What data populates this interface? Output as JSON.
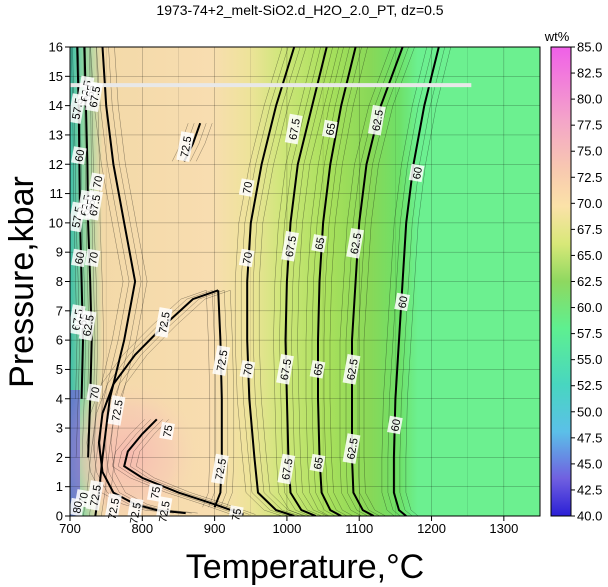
{
  "chart_data": {
    "type": "heatmap",
    "title": "1973-74+2_melt-SiO2.d_H2O_2.0_PT, dz=0.5",
    "xlabel": "Temperature,°C",
    "ylabel": "Pressure,kbar",
    "xlim": [
      700,
      1350
    ],
    "ylim": [
      0,
      16
    ],
    "x_ticks": [
      "700",
      "800",
      "900",
      "1000",
      "1100",
      "1200",
      "1300"
    ],
    "y_ticks": [
      "0",
      "1",
      "2",
      "3",
      "4",
      "5",
      "6",
      "7",
      "8",
      "9",
      "10",
      "11",
      "12",
      "13",
      "14",
      "15",
      "16"
    ],
    "colorbar": {
      "label": "wt%",
      "range": [
        40,
        85
      ],
      "ticks": [
        "40.0",
        "42.5",
        "45.0",
        "47.5",
        "50.0",
        "52.5",
        "55.0",
        "57.5",
        "60.0",
        "62.5",
        "65.0",
        "67.5",
        "70.0",
        "72.5",
        "75.0",
        "77.5",
        "80.0",
        "82.5",
        "85.0"
      ]
    },
    "grid": true,
    "contour_lines": [
      {
        "level": "75",
        "points": [
          [
            820,
            3.3
          ],
          [
            800,
            2.8
          ],
          [
            780,
            2.2
          ],
          [
            775,
            1.7
          ],
          [
            800,
            1.3
          ],
          [
            850,
            0.8
          ],
          [
            900,
            0.4
          ],
          [
            940,
            0.05
          ]
        ]
      },
      {
        "level": "72.5",
        "points": [
          [
            905,
            7.7
          ],
          [
            870,
            7.4
          ],
          [
            830,
            6.5
          ],
          [
            790,
            5.5
          ],
          [
            760,
            4.5
          ],
          [
            745,
            3.5
          ],
          [
            740,
            2.5
          ],
          [
            745,
            1.5
          ],
          [
            760,
            0.8
          ],
          [
            790,
            0.4
          ],
          [
            820,
            0.2
          ],
          [
            860,
            0.1
          ]
        ]
      },
      {
        "level": "72.5",
        "points": [
          [
            905,
            7.7
          ],
          [
            908,
            6.0
          ],
          [
            910,
            4.0
          ],
          [
            910,
            2.0
          ],
          [
            908,
            0.8
          ],
          [
            900,
            0.3
          ]
        ]
      },
      {
        "level": "72.5",
        "points": [
          [
            858,
            12.1
          ],
          [
            870,
            12.7
          ],
          [
            880,
            13.4
          ]
        ]
      },
      {
        "level": "70",
        "points": [
          [
            745,
            16
          ],
          [
            750,
            14
          ],
          [
            760,
            12
          ],
          [
            775,
            10
          ],
          [
            790,
            8
          ],
          [
            775,
            6
          ],
          [
            755,
            4
          ],
          [
            745,
            2
          ],
          [
            740,
            0.8
          ],
          [
            735,
            0
          ]
        ]
      },
      {
        "level": "70",
        "points": [
          [
            1010,
            16
          ],
          [
            985,
            14
          ],
          [
            965,
            12
          ],
          [
            950,
            10
          ],
          [
            945,
            8
          ],
          [
            945,
            6
          ],
          [
            948,
            4
          ],
          [
            955,
            2
          ],
          [
            960,
            0.8
          ],
          [
            985,
            0.2
          ],
          [
            1010,
            0
          ]
        ]
      },
      {
        "level": "67.5",
        "points": [
          [
            1055,
            16
          ],
          [
            1035,
            14
          ],
          [
            1015,
            12
          ],
          [
            1005,
            10
          ],
          [
            1000,
            8
          ],
          [
            998,
            6
          ],
          [
            1000,
            4
          ],
          [
            1002,
            2
          ],
          [
            1005,
            0.8
          ],
          [
            1020,
            0.2
          ],
          [
            1040,
            0
          ]
        ]
      },
      {
        "level": "65",
        "points": [
          [
            1095,
            16
          ],
          [
            1075,
            14
          ],
          [
            1060,
            12
          ],
          [
            1050,
            10
          ],
          [
            1045,
            8
          ],
          [
            1043,
            6
          ],
          [
            1043,
            4
          ],
          [
            1045,
            2
          ],
          [
            1048,
            0.8
          ],
          [
            1060,
            0.2
          ],
          [
            1075,
            0
          ]
        ]
      },
      {
        "level": "62.5",
        "points": [
          [
            1160,
            16
          ],
          [
            1130,
            14
          ],
          [
            1110,
            12
          ],
          [
            1100,
            10
          ],
          [
            1095,
            8
          ],
          [
            1090,
            6
          ],
          [
            1090,
            4
          ],
          [
            1090,
            2
          ],
          [
            1092,
            0.8
          ],
          [
            1105,
            0.2
          ],
          [
            1120,
            0
          ]
        ]
      },
      {
        "level": "60",
        "points": [
          [
            1210,
            16
          ],
          [
            1190,
            14
          ],
          [
            1175,
            12
          ],
          [
            1165,
            10
          ],
          [
            1160,
            8
          ],
          [
            1155,
            6
          ],
          [
            1150,
            4
          ],
          [
            1148,
            2
          ],
          [
            1148,
            0.8
          ],
          [
            1155,
            0.2
          ],
          [
            1165,
            0
          ]
        ]
      },
      {
        "level": "62.5",
        "points": [
          [
            720,
            16
          ],
          [
            722,
            14
          ],
          [
            724,
            12
          ],
          [
            725,
            10
          ],
          [
            728,
            8
          ],
          [
            730,
            6
          ],
          [
            728,
            4
          ],
          [
            725,
            2
          ]
        ]
      },
      {
        "level": "60",
        "points": [
          [
            710,
            16
          ],
          [
            712,
            14
          ],
          [
            713,
            12
          ],
          [
            714,
            10
          ],
          [
            716,
            8
          ],
          [
            718,
            6
          ],
          [
            716,
            4
          ]
        ]
      }
    ],
    "contour_labels": [
      {
        "text": "57.5",
        "x": 710,
        "y": 13.9
      },
      {
        "text": "60",
        "x": 713,
        "y": 12.3
      },
      {
        "text": "62.5",
        "x": 722,
        "y": 14.5
      },
      {
        "text": "65",
        "x": 728,
        "y": 14.5
      },
      {
        "text": "67.5",
        "x": 734,
        "y": 14.3
      },
      {
        "text": "70",
        "x": 738,
        "y": 11.4
      },
      {
        "text": "72.5",
        "x": 860,
        "y": 12.6
      },
      {
        "text": "57.5",
        "x": 710,
        "y": 10.2
      },
      {
        "text": "62.5",
        "x": 722,
        "y": 10.6
      },
      {
        "text": "65",
        "x": 728,
        "y": 10.6
      },
      {
        "text": "67.5",
        "x": 734,
        "y": 10.6
      },
      {
        "text": "60",
        "x": 713,
        "y": 8.8
      },
      {
        "text": "70",
        "x": 732,
        "y": 8.8
      },
      {
        "text": "67.5",
        "x": 710,
        "y": 6.7
      },
      {
        "text": "65",
        "x": 718,
        "y": 6.7
      },
      {
        "text": "62.5",
        "x": 725,
        "y": 6.5
      },
      {
        "text": "72.5",
        "x": 830,
        "y": 6.6
      },
      {
        "text": "70",
        "x": 734,
        "y": 4.2
      },
      {
        "text": "72.5",
        "x": 765,
        "y": 3.6
      },
      {
        "text": "72.5",
        "x": 910,
        "y": 5.3
      },
      {
        "text": "75",
        "x": 835,
        "y": 2.9
      },
      {
        "text": "72.5",
        "x": 908,
        "y": 1.6
      },
      {
        "text": "70",
        "x": 718,
        "y": 0.6
      },
      {
        "text": "72.5",
        "x": 735,
        "y": 0.7
      },
      {
        "text": "75",
        "x": 818,
        "y": 0.8
      },
      {
        "text": "72.5",
        "x": 760,
        "y": 0.25
      },
      {
        "text": "72.5",
        "x": 790,
        "y": 0.1
      },
      {
        "text": "72.5",
        "x": 830,
        "y": 0.15
      },
      {
        "text": "75",
        "x": 930,
        "y": 0.05
      },
      {
        "text": "80",
        "x": 710,
        "y": 0.3
      },
      {
        "text": "70",
        "x": 945,
        "y": 11.2
      },
      {
        "text": "67.5",
        "x": 1010,
        "y": 13.2
      },
      {
        "text": "65",
        "x": 1060,
        "y": 13.2
      },
      {
        "text": "62.5",
        "x": 1125,
        "y": 13.5
      },
      {
        "text": "60",
        "x": 1180,
        "y": 11.7
      },
      {
        "text": "70",
        "x": 945,
        "y": 8.8
      },
      {
        "text": "67.5",
        "x": 1005,
        "y": 9.2
      },
      {
        "text": "65",
        "x": 1045,
        "y": 9.3
      },
      {
        "text": "62.5",
        "x": 1095,
        "y": 9.3
      },
      {
        "text": "60",
        "x": 1160,
        "y": 7.3
      },
      {
        "text": "70",
        "x": 946,
        "y": 5.0
      },
      {
        "text": "67.5",
        "x": 998,
        "y": 5.0
      },
      {
        "text": "65",
        "x": 1043,
        "y": 5.0
      },
      {
        "text": "62.5",
        "x": 1090,
        "y": 5.0
      },
      {
        "text": "60",
        "x": 1150,
        "y": 3.1
      },
      {
        "text": "67.5",
        "x": 1000,
        "y": 1.6
      },
      {
        "text": "65",
        "x": 1043,
        "y": 1.8
      },
      {
        "text": "62.5",
        "x": 1090,
        "y": 2.3
      }
    ],
    "reference_line": {
      "y": 14.7,
      "x_start": 700,
      "x_end": 1255
    }
  }
}
